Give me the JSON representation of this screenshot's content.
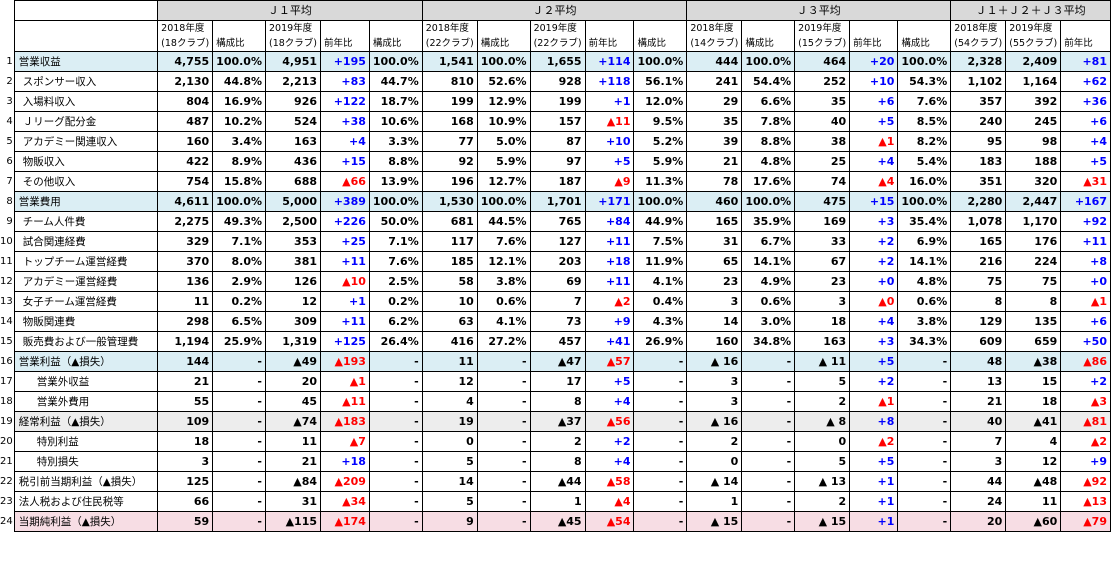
{
  "groups": [
    "Ｊ１平均",
    "Ｊ２平均",
    "Ｊ３平均",
    "Ｊ１＋Ｊ２＋Ｊ３平均"
  ],
  "subheaders": [
    [
      "2018年度",
      "",
      "2019年度",
      "",
      "",
      "2018年度",
      "",
      "2019年度",
      "",
      "",
      "2018年度",
      "",
      "2019年度",
      "",
      "",
      "2018年度",
      "2019年度",
      ""
    ],
    [
      "(18クラブ)",
      "構成比",
      "(18クラブ)",
      "前年比",
      "構成比",
      "(22クラブ)",
      "構成比",
      "(22クラブ)",
      "前年比",
      "構成比",
      "(14クラブ)",
      "構成比",
      "(15クラブ)",
      "前年比",
      "構成比",
      "(54クラブ)",
      "(55クラブ)",
      "前年比"
    ]
  ],
  "rows": [
    {
      "n": "1",
      "label": "営業収益",
      "style": "blue",
      "cells": [
        "4,755",
        "100.0%",
        "4,951",
        "+195",
        "100.0%",
        "1,541",
        "100.0%",
        "1,655",
        "+114",
        "100.0%",
        "444",
        "100.0%",
        "464",
        "+20",
        "100.0%",
        "2,328",
        "2,409",
        "+81"
      ]
    },
    {
      "n": "2",
      "label": "スポンサー収入",
      "indent": true,
      "cells": [
        "2,130",
        "44.8%",
        "2,213",
        "+83",
        "44.7%",
        "810",
        "52.6%",
        "928",
        "+118",
        "56.1%",
        "241",
        "54.4%",
        "252",
        "+10",
        "54.3%",
        "1,102",
        "1,164",
        "+62"
      ]
    },
    {
      "n": "3",
      "label": "入場料収入",
      "indent": true,
      "cells": [
        "804",
        "16.9%",
        "926",
        "+122",
        "18.7%",
        "199",
        "12.9%",
        "199",
        "+1",
        "12.0%",
        "29",
        "6.6%",
        "35",
        "+6",
        "7.6%",
        "357",
        "392",
        "+36"
      ]
    },
    {
      "n": "4",
      "label": "Ｊリーグ配分金",
      "indent": true,
      "cells": [
        "487",
        "10.2%",
        "524",
        "+38",
        "10.6%",
        "168",
        "10.9%",
        "157",
        "▲11",
        "9.5%",
        "35",
        "7.8%",
        "40",
        "+5",
        "8.5%",
        "240",
        "245",
        "+6"
      ]
    },
    {
      "n": "5",
      "label": "アカデミー関連収入",
      "indent": true,
      "cells": [
        "160",
        "3.4%",
        "163",
        "+4",
        "3.3%",
        "77",
        "5.0%",
        "87",
        "+10",
        "5.2%",
        "39",
        "8.8%",
        "38",
        "▲1",
        "8.2%",
        "95",
        "98",
        "+4"
      ]
    },
    {
      "n": "6",
      "label": "物販収入",
      "indent": true,
      "cells": [
        "422",
        "8.9%",
        "436",
        "+15",
        "8.8%",
        "92",
        "5.9%",
        "97",
        "+5",
        "5.9%",
        "21",
        "4.8%",
        "25",
        "+4",
        "5.4%",
        "183",
        "188",
        "+5"
      ]
    },
    {
      "n": "7",
      "label": "その他収入",
      "indent": true,
      "cells": [
        "754",
        "15.8%",
        "688",
        "▲66",
        "13.9%",
        "196",
        "12.7%",
        "187",
        "▲9",
        "11.3%",
        "78",
        "17.6%",
        "74",
        "▲4",
        "16.0%",
        "351",
        "320",
        "▲31"
      ]
    },
    {
      "n": "8",
      "label": "営業費用",
      "style": "blue",
      "cells": [
        "4,611",
        "100.0%",
        "5,000",
        "+389",
        "100.0%",
        "1,530",
        "100.0%",
        "1,701",
        "+171",
        "100.0%",
        "460",
        "100.0%",
        "475",
        "+15",
        "100.0%",
        "2,280",
        "2,447",
        "+167"
      ]
    },
    {
      "n": "9",
      "label": "チーム人件費",
      "indent": true,
      "cells": [
        "2,275",
        "49.3%",
        "2,500",
        "+226",
        "50.0%",
        "681",
        "44.5%",
        "765",
        "+84",
        "44.9%",
        "165",
        "35.9%",
        "169",
        "+3",
        "35.4%",
        "1,078",
        "1,170",
        "+92"
      ]
    },
    {
      "n": "10",
      "label": "試合関連経費",
      "indent": true,
      "cells": [
        "329",
        "7.1%",
        "353",
        "+25",
        "7.1%",
        "117",
        "7.6%",
        "127",
        "+11",
        "7.5%",
        "31",
        "6.7%",
        "33",
        "+2",
        "6.9%",
        "165",
        "176",
        "+11"
      ]
    },
    {
      "n": "11",
      "label": "トップチーム運営経費",
      "indent": true,
      "cells": [
        "370",
        "8.0%",
        "381",
        "+11",
        "7.6%",
        "185",
        "12.1%",
        "203",
        "+18",
        "11.9%",
        "65",
        "14.1%",
        "67",
        "+2",
        "14.1%",
        "216",
        "224",
        "+8"
      ]
    },
    {
      "n": "12",
      "label": "アカデミー運営経費",
      "indent": true,
      "cells": [
        "136",
        "2.9%",
        "126",
        "▲10",
        "2.5%",
        "58",
        "3.8%",
        "69",
        "+11",
        "4.1%",
        "23",
        "4.9%",
        "23",
        "+0",
        "4.8%",
        "75",
        "75",
        "+0"
      ]
    },
    {
      "n": "13",
      "label": "女子チーム運営経費",
      "indent": true,
      "cells": [
        "11",
        "0.2%",
        "12",
        "+1",
        "0.2%",
        "10",
        "0.6%",
        "7",
        "▲2",
        "0.4%",
        "3",
        "0.6%",
        "3",
        "▲0",
        "0.6%",
        "8",
        "8",
        "▲1"
      ]
    },
    {
      "n": "14",
      "label": "物販関連費",
      "indent": true,
      "cells": [
        "298",
        "6.5%",
        "309",
        "+11",
        "6.2%",
        "63",
        "4.1%",
        "73",
        "+9",
        "4.3%",
        "14",
        "3.0%",
        "18",
        "+4",
        "3.8%",
        "129",
        "135",
        "+6"
      ]
    },
    {
      "n": "15",
      "label": "販売費および一般管理費",
      "indent": true,
      "cells": [
        "1,194",
        "25.9%",
        "1,319",
        "+125",
        "26.4%",
        "416",
        "27.2%",
        "457",
        "+41",
        "26.9%",
        "160",
        "34.8%",
        "163",
        "+3",
        "34.3%",
        "609",
        "659",
        "+50"
      ]
    },
    {
      "n": "16",
      "label": "営業利益（▲損失）",
      "style": "blue",
      "cells": [
        "144",
        "-",
        "▲49",
        "▲193",
        "-",
        "11",
        "-",
        "▲47",
        "▲57",
        "-",
        "▲ 16",
        "-",
        "▲ 11",
        "+5",
        "-",
        "48",
        "▲38",
        "▲86"
      ]
    },
    {
      "n": "17",
      "label": "営業外収益",
      "indent2": true,
      "cells": [
        "21",
        "-",
        "20",
        "▲1",
        "-",
        "12",
        "-",
        "17",
        "+5",
        "-",
        "3",
        "-",
        "5",
        "+2",
        "-",
        "13",
        "15",
        "+2"
      ]
    },
    {
      "n": "18",
      "label": "営業外費用",
      "indent2": true,
      "cells": [
        "55",
        "-",
        "45",
        "▲11",
        "-",
        "4",
        "-",
        "8",
        "+4",
        "-",
        "3",
        "-",
        "2",
        "▲1",
        "-",
        "21",
        "18",
        "▲3"
      ]
    },
    {
      "n": "19",
      "label": "経常利益（▲損失）",
      "style": "gray",
      "cells": [
        "109",
        "-",
        "▲74",
        "▲183",
        "-",
        "19",
        "-",
        "▲37",
        "▲56",
        "-",
        "▲ 16",
        "-",
        "▲ 8",
        "+8",
        "-",
        "40",
        "▲41",
        "▲81"
      ]
    },
    {
      "n": "20",
      "label": "特別利益",
      "indent2": true,
      "cells": [
        "18",
        "-",
        "11",
        "▲7",
        "-",
        "0",
        "-",
        "2",
        "+2",
        "-",
        "2",
        "-",
        "0",
        "▲2",
        "-",
        "7",
        "4",
        "▲2"
      ]
    },
    {
      "n": "21",
      "label": "特別損失",
      "indent2": true,
      "cells": [
        "3",
        "-",
        "21",
        "+18",
        "-",
        "5",
        "-",
        "8",
        "+4",
        "-",
        "0",
        "-",
        "5",
        "+5",
        "-",
        "3",
        "12",
        "+9"
      ]
    },
    {
      "n": "22",
      "label": "税引前当期利益（▲損失）",
      "cells": [
        "125",
        "-",
        "▲84",
        "▲209",
        "-",
        "14",
        "-",
        "▲44",
        "▲58",
        "-",
        "▲ 14",
        "-",
        "▲ 13",
        "+1",
        "-",
        "44",
        "▲48",
        "▲92"
      ]
    },
    {
      "n": "23",
      "label": "法人税および住民税等",
      "cells": [
        "66",
        "-",
        "31",
        "▲34",
        "-",
        "5",
        "-",
        "1",
        "▲4",
        "-",
        "1",
        "-",
        "2",
        "+1",
        "-",
        "24",
        "11",
        "▲13"
      ]
    },
    {
      "n": "24",
      "label": "当期純利益（▲損失）",
      "style": "pink",
      "cells": [
        "59",
        "-",
        "▲115",
        "▲174",
        "-",
        "9",
        "-",
        "▲45",
        "▲54",
        "-",
        "▲ 15",
        "-",
        "▲ 15",
        "+1",
        "-",
        "20",
        "▲60",
        "▲79"
      ]
    }
  ],
  "colors": {
    "header_gray": "#d9d9d9",
    "section_blue": "#dbeef4",
    "net_pink": "#f7dde4",
    "positive": "#0000ff",
    "negative": "#ff0000"
  }
}
